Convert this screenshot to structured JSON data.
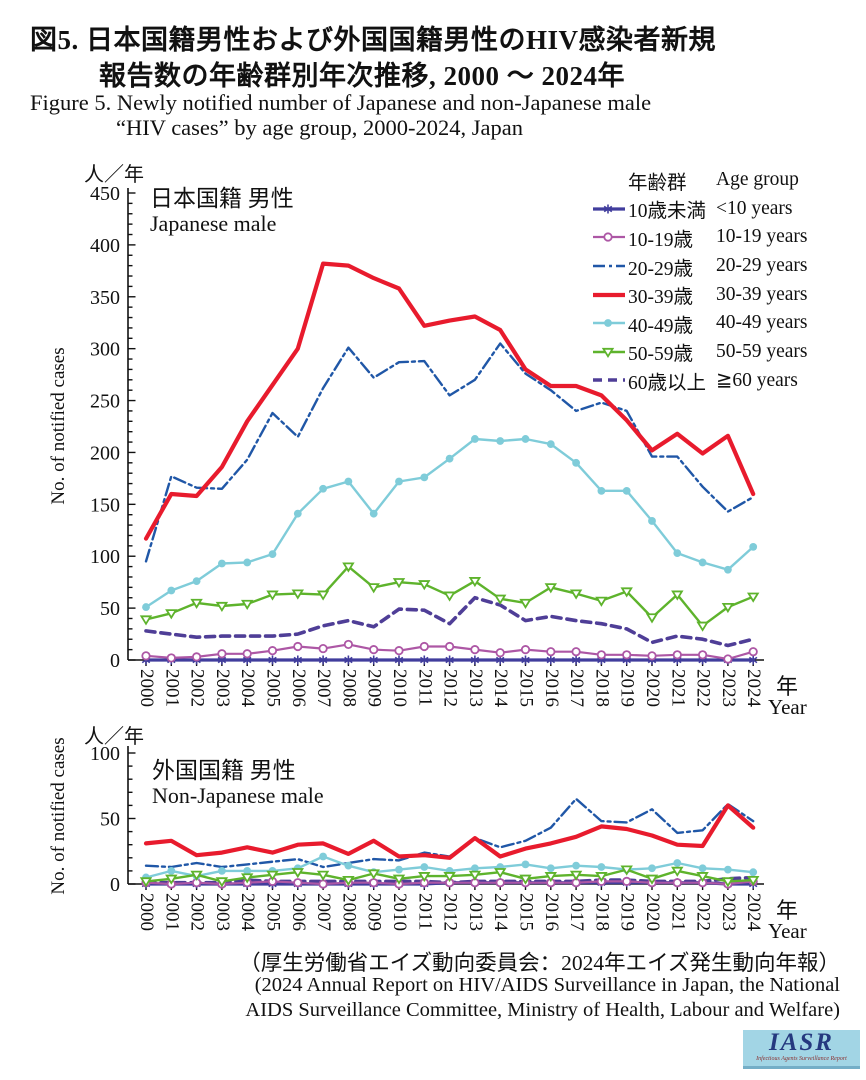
{
  "title": {
    "jp1": "図5.  日本国籍男性および外国国籍男性のHIV感染者新規",
    "jp2": "報告数の年齢群別年次推移, 2000 ～ 2024年",
    "en1": "Figure 5. Newly notified number of Japanese and non-Japanese male",
    "en2": "“HIV cases” by age group, 2000-2024, Japan"
  },
  "legend": {
    "header_jp": "年齢群",
    "header_en": "Age group",
    "items": [
      {
        "jp": "10歳未満",
        "en": "<10 years",
        "color": "#413d9d",
        "width": 3.2,
        "dash": "",
        "marker": "star"
      },
      {
        "jp": "10-19歳",
        "en": "10-19 years",
        "color": "#ad57a5",
        "width": 2.2,
        "dash": "",
        "marker": "circle-open"
      },
      {
        "jp": "20-29歳",
        "en": "20-29 years",
        "color": "#2057a7",
        "width": 2.4,
        "dash": "12 4 3 4",
        "marker": "none"
      },
      {
        "jp": "30-39歳",
        "en": "30-39 years",
        "color": "#e81b2d",
        "width": 4.2,
        "dash": "",
        "marker": "none"
      },
      {
        "jp": "40-49歳",
        "en": "40-49 years",
        "color": "#7fccd9",
        "width": 2.4,
        "dash": "",
        "marker": "circle"
      },
      {
        "jp": "50-59歳",
        "en": "50-59 years",
        "color": "#5eb32c",
        "width": 2.4,
        "dash": "",
        "marker": "tri-down"
      },
      {
        "jp": "60歳以上",
        "en": "≧60 years",
        "color": "#4f3e97",
        "width": 3.6,
        "dash": "9 6",
        "marker": "none"
      }
    ]
  },
  "chart_data": [
    {
      "type": "line",
      "title_jp": "日本国籍 男性",
      "title_en": "Japanese male",
      "unit_label": "人／年",
      "ylabel": "No. of notified cases",
      "xlabel_jp": "年",
      "xlabel_en": "Year",
      "ylim": [
        0,
        450
      ],
      "ytick_major": 50,
      "ytick_minor": 10,
      "x": [
        2000,
        2001,
        2002,
        2003,
        2004,
        2005,
        2006,
        2007,
        2008,
        2009,
        2010,
        2011,
        2012,
        2013,
        2014,
        2015,
        2016,
        2017,
        2018,
        2019,
        2020,
        2021,
        2022,
        2023,
        2024
      ],
      "series": [
        {
          "name": "<10 years",
          "values": [
            0,
            0,
            0,
            0,
            0,
            0,
            0,
            0,
            0,
            0,
            0,
            0,
            0,
            0,
            0,
            0,
            0,
            0,
            0,
            0,
            0,
            0,
            0,
            0,
            0
          ]
        },
        {
          "name": "10-19 years",
          "values": [
            4,
            2,
            3,
            6,
            6,
            9,
            13,
            11,
            15,
            10,
            9,
            13,
            13,
            10,
            7,
            10,
            8,
            8,
            5,
            5,
            4,
            5,
            5,
            1,
            8
          ]
        },
        {
          "name": "20-29 years",
          "values": [
            95,
            177,
            166,
            165,
            193,
            238,
            215,
            262,
            301,
            272,
            287,
            288,
            255,
            270,
            305,
            276,
            260,
            240,
            248,
            240,
            196,
            196,
            167,
            143,
            157
          ]
        },
        {
          "name": "30-39 years",
          "values": [
            117,
            160,
            158,
            186,
            230,
            265,
            300,
            382,
            380,
            368,
            358,
            322,
            327,
            331,
            318,
            280,
            264,
            264,
            255,
            231,
            202,
            218,
            199,
            216,
            160
          ]
        },
        {
          "name": "40-49 years",
          "values": [
            51,
            67,
            76,
            93,
            94,
            102,
            141,
            165,
            172,
            141,
            172,
            176,
            194,
            213,
            211,
            213,
            208,
            190,
            163,
            163,
            134,
            103,
            94,
            87,
            109
          ]
        },
        {
          "name": "50-59 years",
          "values": [
            39,
            45,
            55,
            52,
            54,
            63,
            64,
            63,
            90,
            70,
            75,
            73,
            62,
            76,
            59,
            55,
            70,
            64,
            57,
            66,
            41,
            63,
            33,
            51,
            61
          ]
        },
        {
          "name": "≧60 years",
          "values": [
            28,
            25,
            22,
            23,
            23,
            23,
            25,
            33,
            38,
            32,
            49,
            48,
            35,
            60,
            53,
            38,
            42,
            38,
            35,
            30,
            17,
            23,
            20,
            14,
            20
          ]
        }
      ]
    },
    {
      "type": "line",
      "title_jp": "外国国籍 男性",
      "title_en": "Non-Japanese male",
      "unit_label": "人／年",
      "ylabel": "No. of notified cases",
      "xlabel_jp": "年",
      "xlabel_en": "Year",
      "ylim": [
        0,
        100
      ],
      "ytick_major": 50,
      "ytick_minor": 10,
      "x": [
        2000,
        2001,
        2002,
        2003,
        2004,
        2005,
        2006,
        2007,
        2008,
        2009,
        2010,
        2011,
        2012,
        2013,
        2014,
        2015,
        2016,
        2017,
        2018,
        2019,
        2020,
        2021,
        2022,
        2023,
        2024
      ],
      "series": [
        {
          "name": "<10 years",
          "values": [
            0,
            0,
            0,
            0,
            0,
            0,
            0,
            0,
            0,
            0,
            0,
            0,
            1,
            1,
            1,
            1,
            1,
            1,
            1,
            1,
            1,
            1,
            1,
            0,
            0
          ]
        },
        {
          "name": "10-19 years",
          "values": [
            1,
            0,
            1,
            0,
            1,
            2,
            1,
            0,
            1,
            1,
            0,
            1,
            1,
            1,
            1,
            1,
            1,
            1,
            2,
            2,
            1,
            1,
            1,
            0,
            2
          ]
        },
        {
          "name": "20-29 years",
          "values": [
            14,
            13,
            16,
            13,
            15,
            17,
            19,
            13,
            16,
            19,
            18,
            24,
            21,
            35,
            28,
            33,
            43,
            65,
            48,
            47,
            57,
            39,
            41,
            61,
            48
          ]
        },
        {
          "name": "30-39 years",
          "values": [
            31,
            33,
            22,
            24,
            28,
            24,
            30,
            31,
            23,
            33,
            21,
            22,
            20,
            35,
            21,
            27,
            31,
            36,
            44,
            42,
            37,
            30,
            29,
            60,
            43
          ]
        },
        {
          "name": "40-49 years",
          "values": [
            5,
            10,
            6,
            10,
            10,
            10,
            12,
            21,
            14,
            9,
            11,
            13,
            10,
            12,
            13,
            15,
            12,
            14,
            13,
            11,
            12,
            16,
            12,
            11,
            9
          ]
        },
        {
          "name": "50-59 years",
          "values": [
            2,
            4,
            7,
            2,
            5,
            7,
            9,
            7,
            3,
            8,
            4,
            6,
            6,
            7,
            9,
            4,
            6,
            7,
            6,
            11,
            4,
            10,
            6,
            2,
            3
          ]
        },
        {
          "name": "≧60 years",
          "values": [
            1,
            1,
            1,
            1,
            3,
            2,
            2,
            2,
            2,
            2,
            2,
            2,
            1,
            2,
            2,
            2,
            2,
            2,
            3,
            3,
            2,
            2,
            2,
            4,
            5
          ]
        }
      ]
    }
  ],
  "footer": {
    "jp": "（厚生労働省エイズ動向委員会：2024年エイズ発生動向年報）",
    "en1": "(2024 Annual Report on HIV/AIDS Surveillance in Japan, the National",
    "en2": "AIDS Surveillance Committee, Ministry of Health, Labour and Welfare)"
  },
  "logo": {
    "text": "IASR",
    "subtext": "Infectious Agents Surveillance Report",
    "bg_color": "#a2d5e5",
    "text_color": "#25397f"
  }
}
